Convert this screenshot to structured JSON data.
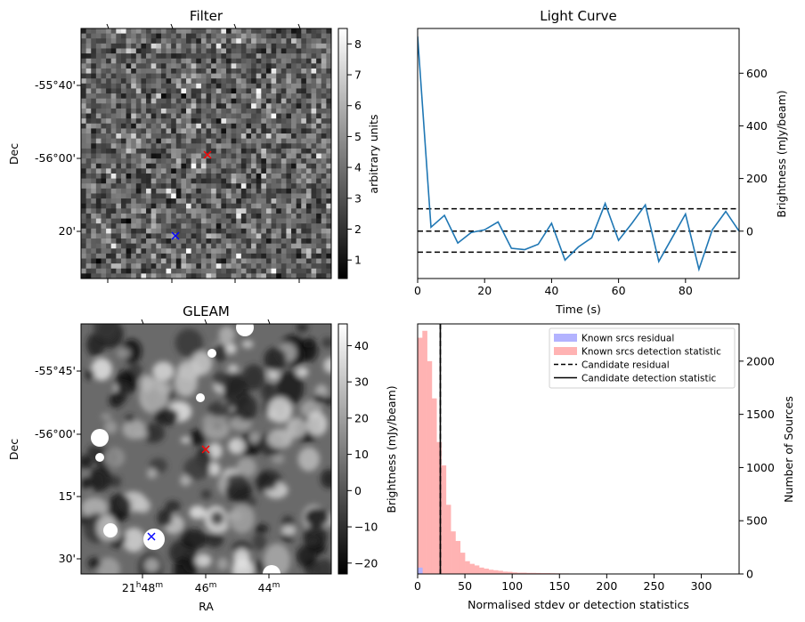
{
  "panels": {
    "filter": {
      "title": "Filter",
      "ylabel": "Dec",
      "yticks": [
        "-55°40'",
        "-56°00'",
        "20'"
      ],
      "colorbar": {
        "label": "arbitrary units",
        "ticks": [
          "1",
          "2",
          "3",
          "4",
          "5",
          "6",
          "7",
          "8"
        ],
        "range": [
          0.4,
          8.5
        ]
      },
      "markers": [
        {
          "name": "red-cross",
          "color": "#ff0000"
        },
        {
          "name": "blue-cross",
          "color": "#0000ff"
        }
      ]
    },
    "gleam": {
      "title": "GLEAM",
      "ylabel": "Dec",
      "xlabel": "RA",
      "yticks": [
        "-55°45'",
        "-56°00'",
        "15'",
        "30'"
      ],
      "xticks": [
        "21h48m",
        "46m",
        "44m"
      ],
      "colorbar": {
        "label": "Brightness (mJy/beam)",
        "ticks": [
          "40",
          "30",
          "20",
          "10",
          "0",
          "−10",
          "−20"
        ],
        "range": [
          -23,
          46
        ]
      },
      "markers": [
        {
          "name": "red-cross",
          "color": "#ff0000"
        },
        {
          "name": "blue-cross",
          "color": "#0000ff"
        }
      ]
    }
  },
  "chart_data": [
    {
      "type": "line",
      "title": "Light Curve",
      "xlabel": "Time (s)",
      "ylabel": "Brightness (mJy/beam)",
      "xlim": [
        0,
        96
      ],
      "ylim": [
        -180,
        770
      ],
      "xticks": [
        0,
        20,
        40,
        60,
        80
      ],
      "yticks": [
        0,
        200,
        400,
        600
      ],
      "color": "#1f77b4",
      "x": [
        0,
        4,
        8,
        12,
        16,
        20,
        24,
        28,
        32,
        36,
        40,
        44,
        48,
        52,
        56,
        60,
        64,
        68,
        72,
        76,
        80,
        84,
        88,
        92,
        96
      ],
      "y": [
        740,
        15,
        60,
        -45,
        -5,
        5,
        35,
        -65,
        -70,
        -50,
        30,
        -110,
        -60,
        -25,
        105,
        -35,
        30,
        100,
        -115,
        -25,
        65,
        -145,
        5,
        75,
        0
      ],
      "hlines": [
        {
          "y": 85,
          "style": "dashed",
          "color": "#000000"
        },
        {
          "y": 0,
          "style": "dashed",
          "color": "#000000"
        },
        {
          "y": -80,
          "style": "dashed",
          "color": "#000000"
        }
      ]
    },
    {
      "type": "bar",
      "xlabel": "Normalised stdev or detection statistics",
      "ylabel": "Number of Sources",
      "xlim": [
        0,
        340
      ],
      "ylim": [
        0,
        2350
      ],
      "xticks": [
        0,
        50,
        100,
        150,
        200,
        250,
        300
      ],
      "yticks": [
        0,
        500,
        1000,
        1500,
        2000
      ],
      "bin_width": 5,
      "series": [
        {
          "name": "Known srcs residual",
          "color": "#b3b3ff",
          "bins": [
            [
              0,
              60
            ]
          ]
        },
        {
          "name": "Known srcs detection statistic",
          "color": "#ffb3b3",
          "bins": [
            [
              0,
              2220
            ],
            [
              5,
              2285
            ],
            [
              10,
              2000
            ],
            [
              15,
              1650
            ],
            [
              20,
              1240
            ],
            [
              25,
              1020
            ],
            [
              30,
              650
            ],
            [
              35,
              400
            ],
            [
              40,
              310
            ],
            [
              45,
              200
            ],
            [
              50,
              120
            ],
            [
              55,
              95
            ],
            [
              60,
              80
            ],
            [
              65,
              60
            ],
            [
              70,
              50
            ],
            [
              75,
              40
            ],
            [
              80,
              35
            ],
            [
              85,
              30
            ],
            [
              90,
              22
            ],
            [
              95,
              20
            ],
            [
              100,
              15
            ],
            [
              105,
              12
            ],
            [
              110,
              12
            ],
            [
              115,
              10
            ],
            [
              120,
              10
            ],
            [
              125,
              9
            ],
            [
              130,
              8
            ],
            [
              135,
              8
            ],
            [
              140,
              7
            ],
            [
              145,
              6
            ],
            [
              150,
              5
            ],
            [
              155,
              5
            ],
            [
              160,
              4
            ],
            [
              165,
              4
            ],
            [
              170,
              3
            ],
            [
              175,
              3
            ],
            [
              180,
              3
            ],
            [
              185,
              3
            ],
            [
              195,
              2
            ],
            [
              200,
              2
            ],
            [
              210,
              2
            ],
            [
              220,
              2
            ],
            [
              230,
              2
            ],
            [
              240,
              1
            ],
            [
              250,
              1
            ],
            [
              260,
              1
            ],
            [
              300,
              1
            ],
            [
              310,
              1
            ]
          ]
        }
      ],
      "vlines": [
        {
          "name": "Candidate residual",
          "x": 24,
          "style": "dashed",
          "color": "#000000"
        },
        {
          "name": "Candidate detection statistic",
          "x": 24,
          "style": "solid",
          "color": "#000000"
        }
      ],
      "legend": "top-right"
    }
  ]
}
